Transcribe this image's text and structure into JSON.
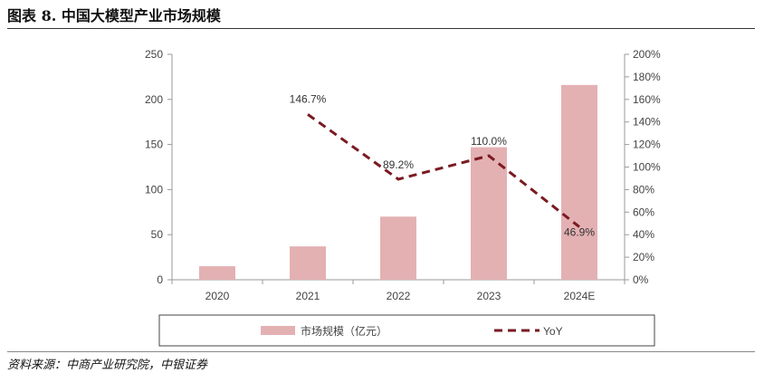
{
  "figure": {
    "title": "图表 8. 中国大模型产业市场规模",
    "source": "资料来源：中商产业研究院，中银证券"
  },
  "chart_data": {
    "type": "bar",
    "categories": [
      "2020",
      "2021",
      "2022",
      "2023",
      "2024E"
    ],
    "series": [
      {
        "name": "市场规模（亿元）",
        "type": "bar",
        "axis": "left",
        "values": [
          15,
          37,
          70,
          147,
          216
        ],
        "color": "#e4b1b3"
      },
      {
        "name": "YoY",
        "type": "line",
        "axis": "right",
        "style": "dashed",
        "values": [
          null,
          146.7,
          89.2,
          110.0,
          46.9
        ],
        "labels": [
          "",
          "146.7%",
          "89.2%",
          "110.0%",
          "46.9%"
        ],
        "color": "#7a1a22"
      }
    ],
    "yticks_left": [
      "0",
      "50",
      "100",
      "150",
      "200",
      "250"
    ],
    "yticks_right": [
      "0%",
      "20%",
      "40%",
      "60%",
      "80%",
      "100%",
      "120%",
      "140%",
      "160%",
      "180%",
      "200%"
    ],
    "ylim_left": [
      0,
      250
    ],
    "ylim_right": [
      0,
      200
    ],
    "grid": false,
    "legend_position": "bottom"
  }
}
